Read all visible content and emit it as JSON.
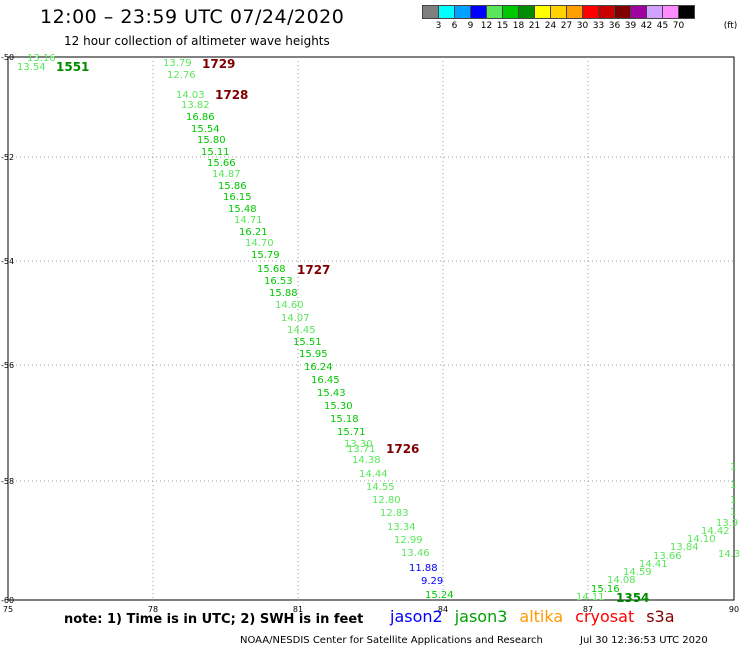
{
  "header": {
    "title": "12:00 – 23:59 UTC 07/24/2020",
    "subtitle": "12 hour collection of altimeter wave heights"
  },
  "legend": {
    "colors": [
      "#7f7f7f",
      "#00ffff",
      "#00a0ff",
      "#0000ff",
      "#5ae65a",
      "#00c800",
      "#008c00",
      "#ffff00",
      "#ffd200",
      "#ffa000",
      "#ff0000",
      "#c80000",
      "#800000",
      "#a000a0",
      "#d2a0ff",
      "#ff8cff",
      "#000000"
    ],
    "labels": [
      "3",
      "6",
      "9",
      "12",
      "15",
      "18",
      "21",
      "24",
      "27",
      "30",
      "33",
      "36",
      "39",
      "42",
      "45",
      "70"
    ],
    "unit": "(ft)"
  },
  "axes": {
    "x_ticks": [
      "75",
      "78",
      "81",
      "84",
      "87",
      "90"
    ],
    "y_ticks": [
      "-50",
      "-52",
      "-54",
      "-56",
      "-58",
      "-60"
    ]
  },
  "track_times": [
    "1551",
    "1729",
    "1728",
    "1727",
    "1726",
    "1354"
  ],
  "wave_labels": [
    "13.16",
    "13.54",
    "13.79",
    "12.76",
    "14.03",
    "13.82",
    "16.86",
    "15.54",
    "15.80",
    "15.11",
    "15.66",
    "14.87",
    "15.86",
    "16.15",
    "15.48",
    "14.71",
    "16.21",
    "14.70",
    "15.79",
    "15.68",
    "16.53",
    "15.88",
    "14.60",
    "14.07",
    "14.45",
    "15.51",
    "15.95",
    "16.24",
    "16.45",
    "15.43",
    "15.30",
    "15.18",
    "15.71",
    "13.30",
    "13.71",
    "14.38",
    "14.44",
    "14.55",
    "12.80",
    "12.83",
    "13.34",
    "12.99",
    "13.46",
    "11.88",
    "9.29",
    "15.24",
    "14.11",
    "15.16",
    "14.08",
    "14.59",
    "14.41",
    "13.66",
    "13.84",
    "14.10",
    "14.42",
    "13.9",
    "14.3"
  ],
  "footer": {
    "note": "note: 1) Time is in UTC; 2) SWH is in feet",
    "satellites": [
      {
        "name": "jason2",
        "color": "#0000ff"
      },
      {
        "name": "jason3",
        "color": "#00a000"
      },
      {
        "name": "altika",
        "color": "#ff9a00"
      },
      {
        "name": "cryosat",
        "color": "#ff0000"
      },
      {
        "name": "s3a",
        "color": "#800000"
      }
    ],
    "credit": "NOAA/NESDIS Center for Satellite Applications and Research",
    "timestamp": "Jul 30 12:36:53 UTC 2020"
  }
}
